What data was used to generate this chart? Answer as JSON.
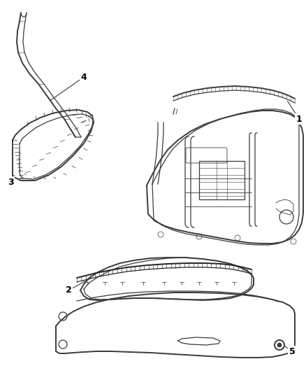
{
  "background_color": "#ffffff",
  "line_color": "#3a3a3a",
  "label_color": "#000000",
  "fig_width": 4.38,
  "fig_height": 5.33,
  "dpi": 100,
  "lw_thin": 0.6,
  "lw_med": 0.9,
  "lw_thick": 1.4,
  "lw_frame": 1.1
}
